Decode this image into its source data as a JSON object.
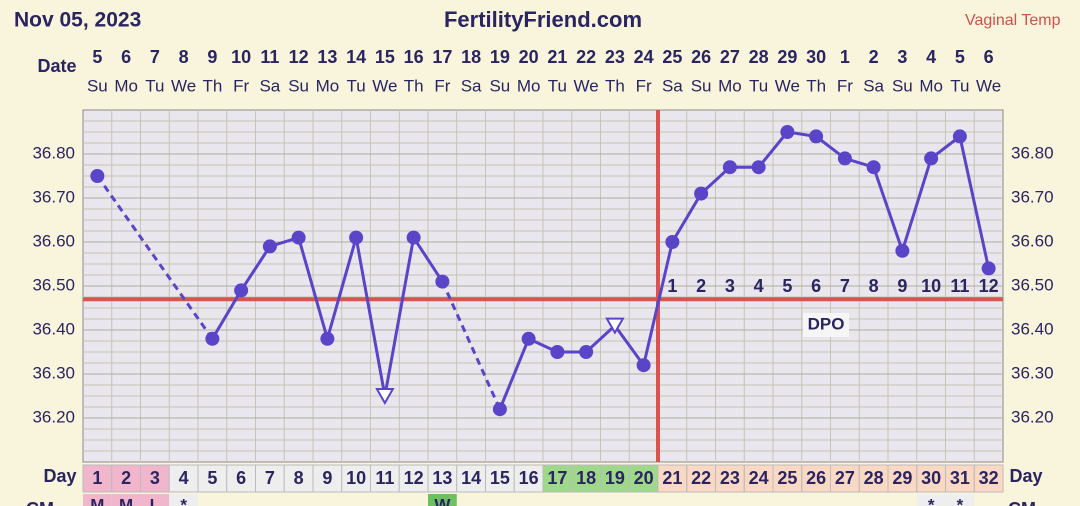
{
  "header": {
    "date": "Nov 05, 2023",
    "site": "FertilityFriend.com",
    "temp_type": "Vaginal Temp"
  },
  "chart_data": {
    "type": "line",
    "date_label": "Date",
    "day_label": "Day",
    "cm_label": "CM",
    "dates": [
      "5",
      "6",
      "7",
      "8",
      "9",
      "10",
      "11",
      "12",
      "13",
      "14",
      "15",
      "16",
      "17",
      "18",
      "19",
      "20",
      "21",
      "22",
      "23",
      "24",
      "25",
      "26",
      "27",
      "28",
      "29",
      "30",
      "1",
      "2",
      "3",
      "4",
      "5",
      "6"
    ],
    "weekdays": [
      "Su",
      "Mo",
      "Tu",
      "We",
      "Th",
      "Fr",
      "Sa",
      "Su",
      "Mo",
      "Tu",
      "We",
      "Th",
      "Fr",
      "Sa",
      "Su",
      "Mo",
      "Tu",
      "We",
      "Th",
      "Fr",
      "Sa",
      "Su",
      "Mo",
      "Tu",
      "We",
      "Th",
      "Fr",
      "Sa",
      "Su",
      "Mo",
      "Tu",
      "We"
    ],
    "categories": [
      1,
      2,
      3,
      4,
      5,
      6,
      7,
      8,
      9,
      10,
      11,
      12,
      13,
      14,
      15,
      16,
      17,
      18,
      19,
      20,
      21,
      22,
      23,
      24,
      25,
      26,
      27,
      28,
      29,
      30,
      31,
      32
    ],
    "series": [
      {
        "color": "#5a44c8",
        "values": [
          36.75,
          null,
          null,
          null,
          36.38,
          36.49,
          36.59,
          36.61,
          36.38,
          36.61,
          36.25,
          36.61,
          36.51,
          null,
          36.22,
          36.38,
          36.35,
          36.35,
          36.41,
          36.32,
          36.6,
          36.71,
          36.77,
          36.77,
          36.85,
          36.84,
          36.79,
          36.77,
          36.58,
          36.79,
          36.84,
          36.54
        ]
      }
    ],
    "open_marker_days": [
      11,
      19
    ],
    "coverline": 36.47,
    "coverline_color": "#d9534f",
    "ovulation_day": 20,
    "dpo_label": "DPO",
    "dpo": [
      null,
      null,
      null,
      null,
      null,
      null,
      null,
      null,
      null,
      null,
      null,
      null,
      null,
      null,
      null,
      null,
      null,
      null,
      null,
      null,
      1,
      2,
      3,
      4,
      5,
      6,
      7,
      8,
      9,
      10,
      11,
      12
    ],
    "day_phases": [
      {
        "from": 1,
        "to": 3,
        "color": "#f2b6cc"
      },
      {
        "from": 17,
        "to": 20,
        "color": "#9ed98a"
      },
      {
        "from": 21,
        "to": 32,
        "color": "#f9d9c4"
      }
    ],
    "cm": [
      "M",
      "M",
      "L",
      "*",
      null,
      null,
      null,
      null,
      null,
      null,
      null,
      null,
      "W",
      null,
      null,
      null,
      null,
      null,
      null,
      null,
      null,
      null,
      null,
      null,
      null,
      null,
      null,
      null,
      null,
      "*",
      "*",
      null
    ],
    "ylim": [
      36.1,
      36.9
    ],
    "yticks": [
      {
        "value": 36.8,
        "label": "36.80"
      },
      {
        "value": 36.7,
        "label": "36.70"
      },
      {
        "value": 36.6,
        "label": "36.60"
      },
      {
        "value": 36.5,
        "label": "36.50"
      },
      {
        "value": 36.4,
        "label": "36.40"
      },
      {
        "value": 36.3,
        "label": "36.30"
      },
      {
        "value": 36.2,
        "label": "36.20"
      }
    ],
    "grid": true
  }
}
